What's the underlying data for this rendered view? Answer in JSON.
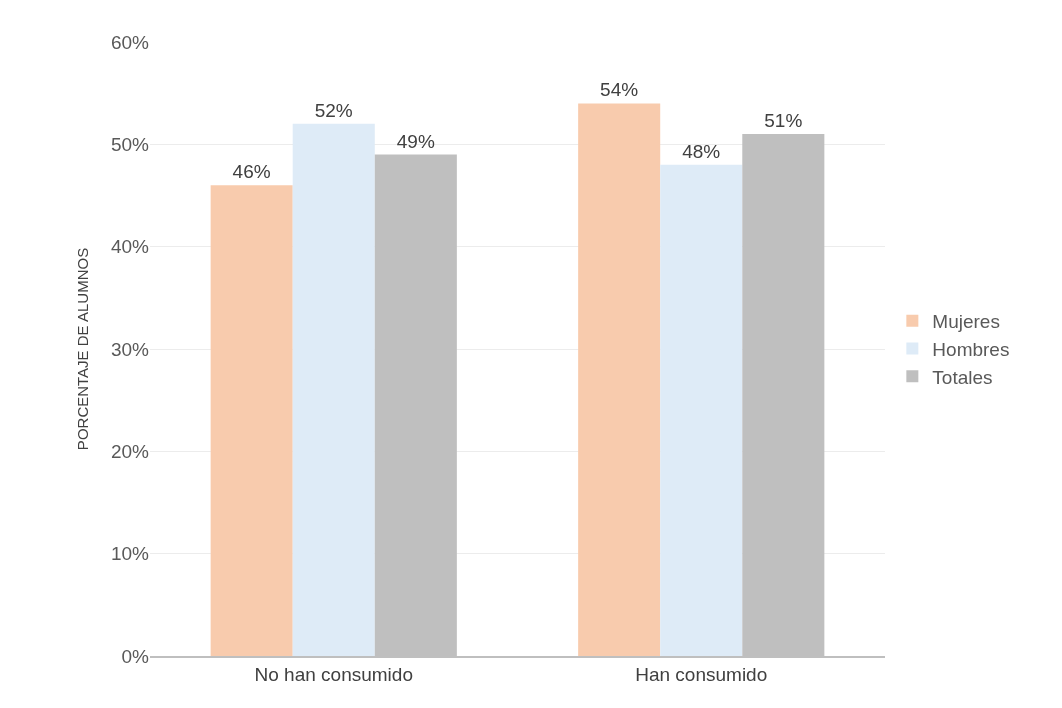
{
  "chart_data": {
    "type": "bar",
    "ylabel": "PORCENTAJE DE ALUMNOS",
    "categories": [
      "No han consumido",
      "Han consumido"
    ],
    "series": [
      {
        "name": "Mujeres",
        "color": "#f8cbad",
        "values": [
          46,
          54
        ],
        "value_labels": [
          "46%",
          "54%"
        ]
      },
      {
        "name": "Hombres",
        "color": "#deebf7",
        "values": [
          52,
          48
        ],
        "value_labels": [
          "52%",
          "48%"
        ]
      },
      {
        "name": "Totales",
        "color": "#bfbfbf",
        "values": [
          49,
          51
        ],
        "value_labels": [
          "49%",
          "51%"
        ]
      }
    ],
    "ylim": [
      0,
      60
    ],
    "yticks": [
      {
        "value": 0,
        "label": "0%"
      },
      {
        "value": 10,
        "label": "10%"
      },
      {
        "value": 20,
        "label": "20%"
      },
      {
        "value": 30,
        "label": "30%"
      },
      {
        "value": 40,
        "label": "40%"
      },
      {
        "value": 50,
        "label": "50%"
      },
      {
        "value": 60,
        "label": "60%"
      }
    ],
    "grid": "y",
    "legend": "right"
  }
}
